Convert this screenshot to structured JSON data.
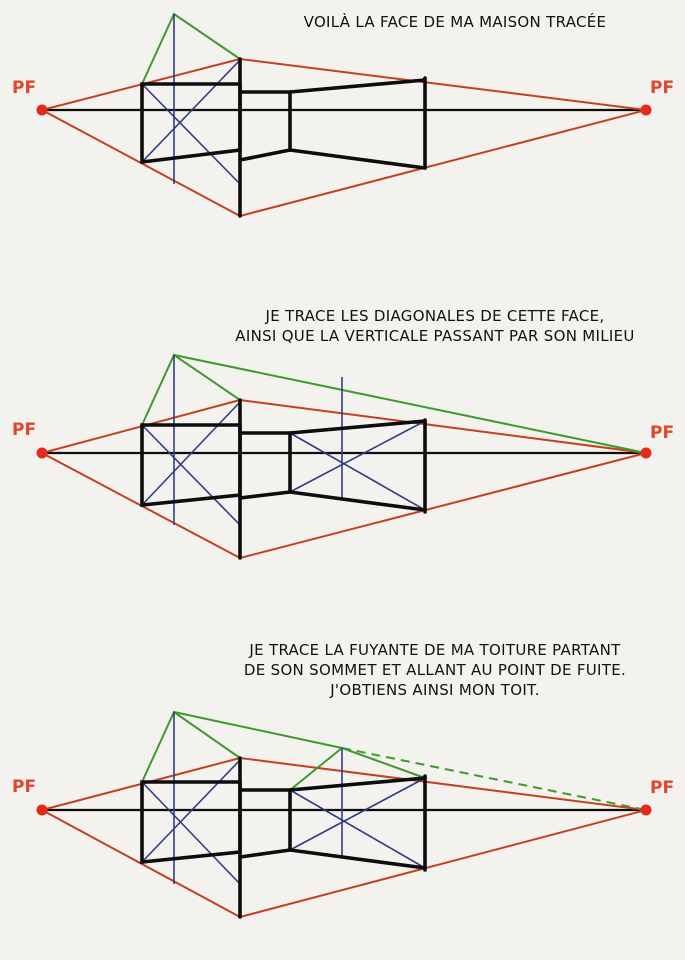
{
  "panels": [
    {
      "caption_lines": [
        "VOILÀ LA FACE DE MA MAISON TRACÉE"
      ],
      "pf_left": "PF",
      "pf_right": "PF"
    },
    {
      "caption_lines": [
        "JE TRACE LES DIAGONALES DE CETTE FACE,",
        "AINSI QUE LA VERTICALE PASSANT PAR SON MILIEU"
      ],
      "pf_left": "PF",
      "pf_right": "PF"
    },
    {
      "caption_lines": [
        "JE TRACE LA FUYANTE DE MA TOITURE PARTANT",
        "DE SON SOMMET ET ALLANT AU POINT DE FUITE.",
        "J'OBTIENS AINSI MON TOIT."
      ],
      "pf_left": "PF",
      "pf_right": "PF"
    }
  ],
  "colors": {
    "background": "#f3f2ef",
    "black": "#0d0d0d",
    "red": "#c4401f",
    "green": "#3f9a2c",
    "blue": "#2e3d86",
    "dot": "#e32b1b"
  }
}
